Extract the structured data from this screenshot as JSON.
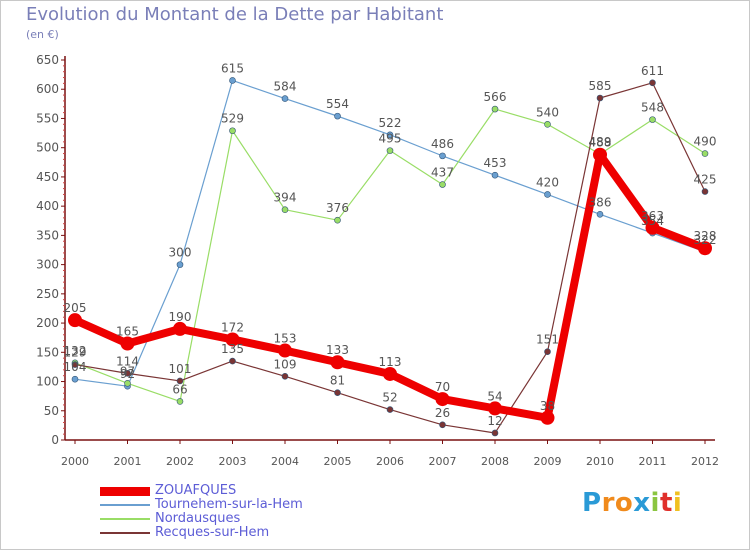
{
  "header": {
    "title": "Evolution du Montant de la Dette par Habitant",
    "subtitle": "(en €)"
  },
  "logo": {
    "text": "Proxiti",
    "letters": [
      "P",
      "r",
      "o",
      "x",
      "i",
      "t",
      "i"
    ],
    "colors": [
      "#2a9ad6",
      "#f08a1c",
      "#f08a1c",
      "#2a9ad6",
      "#8bc540",
      "#e0302b",
      "#f0c020"
    ]
  },
  "chart_data": {
    "type": "line",
    "title": "Evolution du Montant de la Dette par Habitant",
    "subtitle": "(en €)",
    "x": [
      "2000",
      "2001",
      "2002",
      "2003",
      "2004",
      "2005",
      "2006",
      "2007",
      "2008",
      "2009",
      "2010",
      "2011",
      "2012"
    ],
    "ylim": [
      0,
      650
    ],
    "yticks": [
      0,
      50,
      100,
      150,
      200,
      250,
      300,
      350,
      400,
      450,
      500,
      550,
      600,
      650
    ],
    "grid": false,
    "legend_position": "bottom-left",
    "series": [
      {
        "name": "ZOUAFQUES",
        "color": "#ee0000",
        "values": [
          205,
          165,
          190,
          172,
          153,
          133,
          113,
          70,
          54,
          38,
          488,
          363,
          328
        ],
        "labels": [
          "205",
          "165",
          "190",
          "172",
          "153",
          "133",
          "113",
          "70",
          "54",
          "38",
          "488",
          "363",
          "328"
        ]
      },
      {
        "name": "Tournehem-sur-la-Hem",
        "color": "#6a9fd0",
        "values": [
          104,
          92,
          300,
          615,
          584,
          554,
          522,
          486,
          453,
          420,
          386,
          354,
          322
        ],
        "labels": [
          "104",
          "92",
          "300",
          "615",
          "584",
          "554",
          "522",
          "486",
          "453",
          "420",
          "386",
          "354",
          "322"
        ]
      },
      {
        "name": "Nordausques",
        "color": "#99dd66",
        "values": [
          132,
          97,
          66,
          529,
          394,
          376,
          495,
          437,
          566,
          540,
          489,
          548,
          490
        ],
        "labels": [
          "132",
          "97",
          "66",
          "529",
          "394",
          "376",
          "495",
          "437",
          "566",
          "540",
          "489",
          "548",
          "490"
        ]
      },
      {
        "name": "Recques-sur-Hem",
        "color": "#7a3535",
        "values": [
          129,
          114,
          101,
          135,
          109,
          81,
          52,
          26,
          12,
          151,
          585,
          611,
          425
        ],
        "labels": [
          "129",
          "114",
          "101",
          "135",
          "109",
          "81",
          "52",
          "26",
          "12",
          "151",
          "585",
          "611",
          "425"
        ]
      }
    ]
  }
}
